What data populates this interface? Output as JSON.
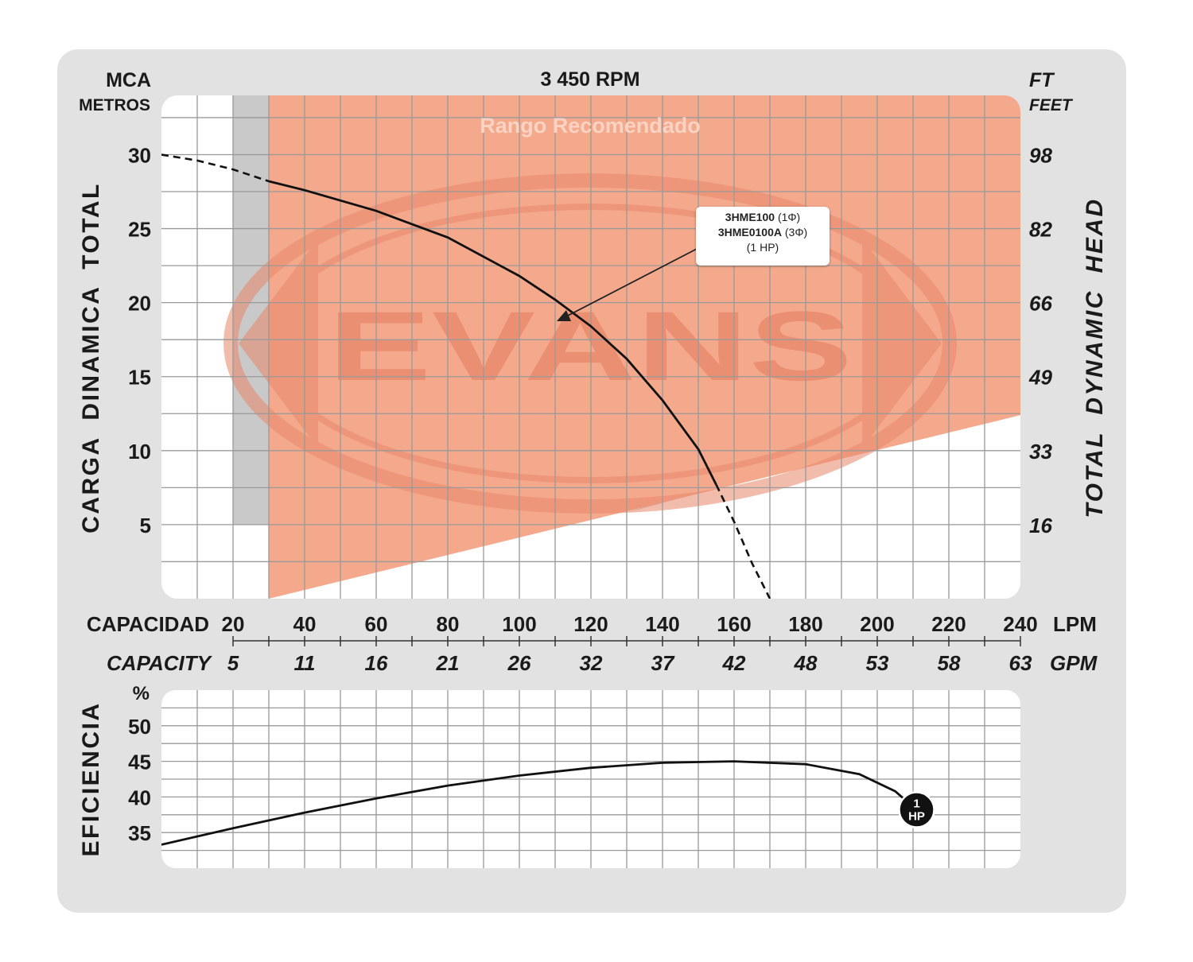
{
  "chart_data": [
    {
      "type": "line",
      "title": "3 450 RPM",
      "band_label": "Rango Recomendado",
      "watermark": "EVANS",
      "y_left_header": [
        "MCA",
        "METROS"
      ],
      "y_right_header": [
        "FT",
        "FEET"
      ],
      "ylabel": "CARGA DINAMICA TOTAL",
      "ylabel_right": "TOTAL DYNAMIC HEAD",
      "yticks": [
        30,
        25,
        20,
        15,
        10,
        5
      ],
      "yticks_right": [
        "98",
        "82",
        "66",
        "49",
        "33",
        "16"
      ],
      "ylim": [
        0,
        34
      ],
      "xlabel": "CAPACIDAD",
      "xunit": "LPM",
      "xticks": [
        20,
        40,
        60,
        80,
        100,
        120,
        140,
        160,
        180,
        200,
        220,
        240
      ],
      "xlabel_secondary": "CAPACITY",
      "xunit_secondary": "GPM",
      "xticks_secondary": [
        "5",
        "11",
        "16",
        "21",
        "26",
        "32",
        "37",
        "42",
        "48",
        "53",
        "58",
        "63"
      ],
      "xlim": [
        0,
        240
      ],
      "recommended_range": {
        "x_start": 30,
        "x_end": 240
      },
      "series": [
        {
          "points": [
            [
              0,
              30
            ],
            [
              10,
              29.6
            ],
            [
              20,
              29
            ],
            [
              30,
              28.2
            ],
            [
              40,
              27.6
            ],
            [
              60,
              26.2
            ],
            [
              80,
              24.4
            ],
            [
              100,
              21.8
            ],
            [
              110,
              20.2
            ],
            [
              120,
              18.4
            ],
            [
              130,
              16.2
            ],
            [
              140,
              13.4
            ],
            [
              150,
              10.1
            ],
            [
              155,
              7.7
            ],
            [
              160,
              5.2
            ],
            [
              165,
              2.4
            ],
            [
              170,
              0
            ]
          ],
          "dashed_before": 30,
          "dashed_after": 155
        }
      ],
      "callout": {
        "line1": "3HME100",
        "line1_suffix": "(1Φ)",
        "line2": "3HME0100A",
        "line2_suffix": "(3Φ)",
        "line3": "(1 HP)"
      }
    },
    {
      "type": "line",
      "ylabel": "EFICIENCIA",
      "yunit": "%",
      "yticks": [
        50,
        45,
        40,
        35
      ],
      "ylim": [
        30,
        55
      ],
      "xlim": [
        0,
        240
      ],
      "series": [
        {
          "marker_label": [
            "1",
            "HP"
          ],
          "points": [
            [
              0,
              33.3
            ],
            [
              20,
              35.6
            ],
            [
              40,
              37.8
            ],
            [
              60,
              39.8
            ],
            [
              80,
              41.6
            ],
            [
              100,
              43
            ],
            [
              120,
              44.1
            ],
            [
              140,
              44.8
            ],
            [
              160,
              45
            ],
            [
              180,
              44.6
            ],
            [
              195,
              43.2
            ],
            [
              205,
              40.8
            ],
            [
              211,
              38.2
            ]
          ]
        }
      ]
    }
  ]
}
